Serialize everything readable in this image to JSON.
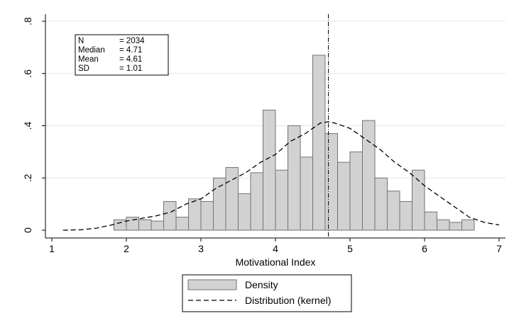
{
  "chart_data": {
    "type": "bar",
    "xlabel": "Motivational Index",
    "ylabel": "",
    "xlim": [
      1,
      7
    ],
    "ylim": [
      0,
      0.8
    ],
    "x_ticks": [
      1,
      2,
      3,
      4,
      5,
      6,
      7
    ],
    "y_ticks": [
      0,
      0.2,
      0.4,
      0.6,
      0.8
    ],
    "x_tick_labels": [
      "1",
      "2",
      "3",
      "4",
      "5",
      "6",
      "7"
    ],
    "y_tick_labels": [
      "0",
      ".2",
      ".4",
      ".6",
      ".8"
    ],
    "grid": "horizontal",
    "legend_position": "bottom",
    "colors": {
      "bar_fill": "#d2d2d2",
      "bar_stroke": "#737373",
      "line": "#000000"
    },
    "histogram": {
      "name": "Density",
      "bin_width": 0.1667,
      "bins": [
        {
          "x0": 1.8333,
          "density": 0.04
        },
        {
          "x0": 2.0,
          "density": 0.05
        },
        {
          "x0": 2.1667,
          "density": 0.04
        },
        {
          "x0": 2.3333,
          "density": 0.035
        },
        {
          "x0": 2.5,
          "density": 0.11
        },
        {
          "x0": 2.6667,
          "density": 0.05
        },
        {
          "x0": 2.8333,
          "density": 0.12
        },
        {
          "x0": 3.0,
          "density": 0.11
        },
        {
          "x0": 3.1667,
          "density": 0.2
        },
        {
          "x0": 3.3333,
          "density": 0.24
        },
        {
          "x0": 3.5,
          "density": 0.14
        },
        {
          "x0": 3.6667,
          "density": 0.22
        },
        {
          "x0": 3.8333,
          "density": 0.46
        },
        {
          "x0": 4.0,
          "density": 0.23
        },
        {
          "x0": 4.1667,
          "density": 0.4
        },
        {
          "x0": 4.3333,
          "density": 0.28
        },
        {
          "x0": 4.5,
          "density": 0.67
        },
        {
          "x0": 4.6667,
          "density": 0.37
        },
        {
          "x0": 4.8333,
          "density": 0.26
        },
        {
          "x0": 5.0,
          "density": 0.3
        },
        {
          "x0": 5.1667,
          "density": 0.42
        },
        {
          "x0": 5.3333,
          "density": 0.2
        },
        {
          "x0": 5.5,
          "density": 0.15
        },
        {
          "x0": 5.6667,
          "density": 0.11
        },
        {
          "x0": 5.8333,
          "density": 0.23
        },
        {
          "x0": 6.0,
          "density": 0.07
        },
        {
          "x0": 6.1667,
          "density": 0.04
        },
        {
          "x0": 6.3333,
          "density": 0.03
        },
        {
          "x0": 6.5,
          "density": 0.04
        }
      ]
    },
    "kernel": {
      "name": "Distribution (kernel)",
      "style": "dashed",
      "points": [
        [
          1.15,
          0.0
        ],
        [
          1.4,
          0.002
        ],
        [
          1.6,
          0.008
        ],
        [
          1.8,
          0.02
        ],
        [
          2.0,
          0.035
        ],
        [
          2.2,
          0.045
        ],
        [
          2.4,
          0.055
        ],
        [
          2.6,
          0.07
        ],
        [
          2.8,
          0.1
        ],
        [
          3.0,
          0.12
        ],
        [
          3.2,
          0.16
        ],
        [
          3.4,
          0.19
        ],
        [
          3.6,
          0.22
        ],
        [
          3.8,
          0.26
        ],
        [
          4.0,
          0.29
        ],
        [
          4.2,
          0.34
        ],
        [
          4.4,
          0.37
        ],
        [
          4.6,
          0.41
        ],
        [
          4.7,
          0.415
        ],
        [
          4.8,
          0.41
        ],
        [
          5.0,
          0.39
        ],
        [
          5.2,
          0.35
        ],
        [
          5.4,
          0.31
        ],
        [
          5.6,
          0.26
        ],
        [
          5.8,
          0.22
        ],
        [
          6.0,
          0.17
        ],
        [
          6.2,
          0.13
        ],
        [
          6.4,
          0.09
        ],
        [
          6.6,
          0.05
        ],
        [
          6.8,
          0.03
        ],
        [
          7.0,
          0.02
        ]
      ]
    },
    "reference_line": {
      "x": 4.71,
      "style": "dash-dot"
    },
    "stats_box": [
      {
        "label": "N",
        "value": "= 2034"
      },
      {
        "label": "Median",
        "value": "= 4.71"
      },
      {
        "label": "Mean",
        "value": "= 4.61"
      },
      {
        "label": "SD",
        "value": "= 1.01"
      }
    ],
    "legend": [
      {
        "label": "Density",
        "symbol": "bar"
      },
      {
        "label": "Distribution (kernel)",
        "symbol": "dashed-line"
      }
    ]
  }
}
